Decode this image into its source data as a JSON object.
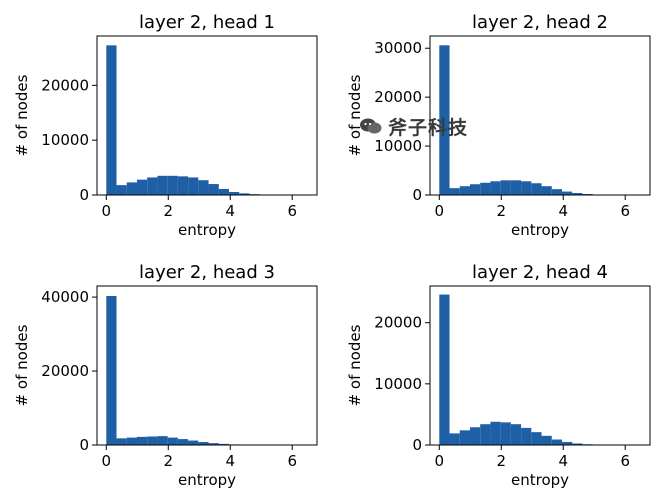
{
  "colors": {
    "bar": "#1f5fa6",
    "axis": "#000000",
    "text": "#000000",
    "background": "#ffffff"
  },
  "watermark": {
    "icon": "wechat-logo-icon",
    "text": "斧子科技"
  },
  "chart_data": [
    {
      "type": "bar",
      "title": "layer 2, head 1",
      "xlabel": "entropy",
      "ylabel": "# of nodes",
      "xlim": [
        -0.3,
        6.8
      ],
      "ylim": [
        0,
        29000
      ],
      "xticks": [
        0,
        2,
        4,
        6
      ],
      "yticks": [
        0,
        10000,
        20000
      ],
      "bin_width": 0.33,
      "bin_start": 0,
      "values": [
        27300,
        1800,
        2300,
        2800,
        3200,
        3500,
        3500,
        3400,
        3200,
        2700,
        2000,
        1100,
        550,
        300,
        150,
        80,
        40,
        20,
        10,
        5
      ]
    },
    {
      "type": "bar",
      "title": "layer 2, head 2",
      "xlabel": "entropy",
      "ylabel": "# of nodes",
      "xlim": [
        -0.3,
        6.8
      ],
      "ylim": [
        0,
        32500
      ],
      "xticks": [
        0,
        2,
        4,
        6
      ],
      "yticks": [
        0,
        10000,
        20000,
        30000
      ],
      "bin_width": 0.33,
      "bin_start": 0,
      "values": [
        30600,
        1400,
        1800,
        2200,
        2500,
        2800,
        3000,
        3000,
        2800,
        2400,
        1800,
        1200,
        700,
        400,
        200,
        100,
        60,
        30,
        15,
        5
      ]
    },
    {
      "type": "bar",
      "title": "layer 2, head 3",
      "xlabel": "entropy",
      "ylabel": "# of nodes",
      "xlim": [
        -0.3,
        6.8
      ],
      "ylim": [
        0,
        43000
      ],
      "xticks": [
        0,
        2,
        4,
        6
      ],
      "yticks": [
        0,
        20000,
        40000
      ],
      "bin_width": 0.33,
      "bin_start": 0,
      "values": [
        40300,
        1800,
        2000,
        2200,
        2300,
        2400,
        2000,
        1600,
        1200,
        800,
        500,
        300,
        150,
        80,
        40,
        20,
        10,
        5,
        3,
        1
      ]
    },
    {
      "type": "bar",
      "title": "layer 2, head 4",
      "xlabel": "entropy",
      "ylabel": "# of nodes",
      "xlim": [
        -0.3,
        6.8
      ],
      "ylim": [
        0,
        26000
      ],
      "xticks": [
        0,
        2,
        4,
        6
      ],
      "yticks": [
        0,
        10000,
        20000
      ],
      "bin_width": 0.33,
      "bin_start": 0,
      "values": [
        24600,
        1900,
        2400,
        2900,
        3400,
        3800,
        3700,
        3400,
        2800,
        2100,
        1500,
        900,
        500,
        250,
        120,
        60,
        30,
        15,
        8,
        4
      ]
    }
  ]
}
